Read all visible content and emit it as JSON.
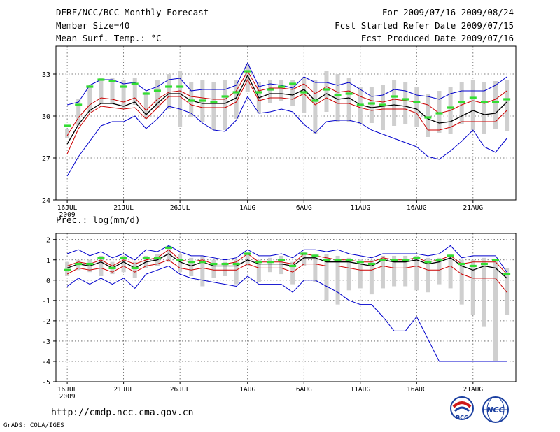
{
  "header": {
    "title": "DERF/NCC/BCC Monthly Forecast",
    "member_size": "Member Size=40",
    "variable": "Mean Surf. Temp.: °C",
    "period": "For 2009/07/16-2009/08/24",
    "started": "Fcst Started Refer Date 2009/07/15",
    "produced": "Fcst Produced Date 2009/07/16"
  },
  "footer": {
    "url": "http://cmdp.ncc.cma.gov.cn",
    "grads": "GrADS: COLA/IGES",
    "logo_left_text": "BCC",
    "logo_right_text": "NCC"
  },
  "colors": {
    "max_min": "#0000cc",
    "spread": "#cc0000",
    "mean": "#000000",
    "member_box": "#cfcfcf",
    "marker": "#33dd33"
  },
  "chart_data": [
    {
      "type": "line",
      "title": "Mean Surf. Temp.: °C",
      "x_ticks": [
        {
          "day": 0,
          "label": "16JUL",
          "sub": "2009"
        },
        {
          "day": 5,
          "label": "21JUL"
        },
        {
          "day": 10,
          "label": "26JUL"
        },
        {
          "day": 16,
          "label": "1AUG"
        },
        {
          "day": 21,
          "label": "6AUG"
        },
        {
          "day": 26,
          "label": "11AUG"
        },
        {
          "day": 31,
          "label": "16AUG"
        },
        {
          "day": 36,
          "label": "21AUG"
        }
      ],
      "xlim": [
        -1,
        39.8
      ],
      "ylim": [
        24,
        35
      ],
      "yticks": [
        24,
        27,
        30,
        33
      ],
      "grid": true,
      "series": [
        {
          "name": "max",
          "role": "max",
          "values": [
            30.8,
            31.0,
            32.2,
            32.6,
            32.6,
            32.3,
            32.4,
            31.8,
            32.1,
            32.6,
            32.7,
            31.8,
            31.9,
            31.9,
            31.9,
            32.2,
            33.8,
            32.1,
            32.3,
            32.2,
            32.0,
            32.8,
            32.4,
            32.4,
            32.2,
            32.4,
            31.9,
            31.4,
            31.5,
            31.9,
            31.8,
            31.5,
            31.4,
            31.2,
            31.6,
            31.8,
            31.8,
            31.8,
            32.2,
            32.8
          ]
        },
        {
          "name": "max_member",
          "role": "upper",
          "values": [
            28.6,
            29.9,
            30.8,
            31.3,
            31.2,
            31.0,
            31.3,
            30.4,
            31.2,
            31.7,
            31.8,
            31.4,
            31.3,
            31.2,
            31.2,
            31.8,
            33.2,
            31.8,
            32.0,
            32.0,
            31.9,
            32.3,
            31.6,
            32.1,
            31.7,
            31.8,
            31.4,
            31.1,
            31.0,
            31.2,
            31.1,
            31.0,
            30.8,
            30.2,
            30.4,
            30.8,
            31.1,
            30.9,
            31.2,
            31.8
          ]
        },
        {
          "name": "mean",
          "role": "mean",
          "values": [
            28.0,
            29.4,
            30.4,
            30.9,
            30.9,
            30.7,
            31.0,
            30.1,
            30.9,
            31.6,
            31.6,
            31.1,
            30.9,
            30.9,
            30.9,
            31.3,
            32.9,
            31.3,
            31.6,
            31.6,
            31.5,
            31.9,
            31.1,
            31.6,
            31.2,
            31.3,
            30.8,
            30.6,
            30.7,
            30.8,
            30.7,
            30.5,
            29.8,
            29.5,
            29.6,
            30.0,
            30.4,
            30.1,
            30.2,
            31.0
          ]
        },
        {
          "name": "min_member",
          "role": "lower",
          "values": [
            27.3,
            29.1,
            30.2,
            30.7,
            30.6,
            30.5,
            30.6,
            29.8,
            30.6,
            31.4,
            31.4,
            30.8,
            30.6,
            30.6,
            30.6,
            31.0,
            32.6,
            31.1,
            31.3,
            31.3,
            31.2,
            31.6,
            30.8,
            31.3,
            30.9,
            30.9,
            30.6,
            30.4,
            30.5,
            30.5,
            30.5,
            30.2,
            29.0,
            29.0,
            29.2,
            29.6,
            29.6,
            29.6,
            29.6,
            30.4
          ]
        },
        {
          "name": "min",
          "role": "min",
          "values": [
            25.7,
            27.1,
            28.2,
            29.3,
            29.6,
            29.6,
            30.0,
            29.1,
            29.8,
            30.7,
            30.5,
            30.2,
            29.5,
            29.0,
            28.9,
            29.7,
            31.4,
            30.2,
            30.3,
            30.5,
            30.3,
            29.4,
            28.8,
            29.6,
            29.7,
            29.7,
            29.5,
            29.0,
            28.7,
            28.4,
            28.1,
            27.8,
            27.1,
            26.9,
            27.5,
            28.2,
            29.0,
            27.8,
            27.4,
            28.4
          ]
        },
        {
          "name": "member_box_top",
          "role": "box_top",
          "values": [
            29.1,
            31.2,
            32.2,
            32.7,
            32.7,
            32.6,
            32.7,
            31.7,
            32.6,
            33.0,
            33.2,
            32.4,
            32.6,
            32.4,
            32.6,
            32.6,
            33.7,
            32.4,
            32.6,
            32.6,
            32.6,
            32.8,
            32.6,
            33.2,
            33.0,
            32.7,
            32.1,
            32.1,
            32.2,
            32.6,
            32.4,
            32.1,
            31.6,
            31.8,
            32.1,
            32.4,
            32.6,
            32.4,
            32.5,
            32.6
          ]
        },
        {
          "name": "member_box_bottom",
          "role": "box_bottom",
          "values": [
            28.4,
            29.3,
            30.3,
            30.9,
            30.9,
            30.5,
            30.8,
            29.8,
            30.6,
            30.5,
            29.2,
            29.9,
            29.6,
            29.0,
            29.0,
            29.8,
            31.7,
            30.2,
            30.9,
            31.1,
            30.7,
            30.2,
            28.7,
            30.3,
            29.6,
            29.6,
            29.4,
            29.5,
            29.0,
            29.3,
            29.4,
            29.2,
            28.5,
            28.8,
            28.7,
            29.4,
            29.0,
            28.7,
            29.1,
            28.9
          ]
        },
        {
          "name": "observed_marker",
          "role": "marker",
          "values": [
            29.3,
            30.8,
            32.1,
            32.6,
            32.5,
            32.1,
            32.3,
            31.6,
            31.8,
            32.1,
            32.1,
            31.1,
            31.1,
            31.0,
            31.4,
            31.7,
            33.2,
            31.7,
            31.9,
            32.1,
            32.3,
            31.7,
            31.1,
            31.9,
            31.5,
            31.6,
            30.8,
            30.9,
            30.8,
            31.4,
            31.2,
            31.0,
            29.9,
            30.2,
            30.6,
            31.0,
            31.3,
            31.0,
            31.0,
            31.2
          ]
        }
      ]
    },
    {
      "type": "line",
      "title": "Prec.: log(mm/d)",
      "x_ticks": [
        {
          "day": 0,
          "label": "16JUL",
          "sub": "2009"
        },
        {
          "day": 5,
          "label": "21JUL"
        },
        {
          "day": 10,
          "label": "26JUL"
        },
        {
          "day": 16,
          "label": "1AUG"
        },
        {
          "day": 21,
          "label": "6AUG"
        },
        {
          "day": 26,
          "label": "11AUG"
        },
        {
          "day": 31,
          "label": "16AUG"
        },
        {
          "day": 36,
          "label": "21AUG"
        }
      ],
      "xlim": [
        -1,
        39.8
      ],
      "ylim": [
        -5,
        2.3
      ],
      "yticks": [
        -5,
        -4,
        -3,
        -2,
        -1,
        0,
        1,
        2
      ],
      "grid": true,
      "series": [
        {
          "name": "max",
          "role": "max",
          "values": [
            1.3,
            1.5,
            1.2,
            1.4,
            1.1,
            1.3,
            1.0,
            1.5,
            1.4,
            1.7,
            1.4,
            1.2,
            1.2,
            1.1,
            1.0,
            1.1,
            1.5,
            1.2,
            1.2,
            1.3,
            1.1,
            1.5,
            1.5,
            1.4,
            1.5,
            1.3,
            1.2,
            1.1,
            1.3,
            1.3,
            1.3,
            1.3,
            1.2,
            1.3,
            1.7,
            1.1,
            1.2,
            1.2,
            1.2,
            0.4
          ]
        },
        {
          "name": "max_member",
          "role": "upper",
          "values": [
            0.7,
            0.9,
            0.8,
            1.0,
            0.7,
            1.0,
            0.8,
            1.0,
            1.1,
            1.5,
            1.0,
            0.9,
            1.0,
            0.8,
            0.8,
            0.9,
            1.3,
            0.9,
            0.9,
            0.9,
            0.8,
            1.3,
            1.2,
            1.1,
            1.0,
            1.0,
            0.9,
            0.9,
            1.1,
            1.0,
            1.0,
            1.1,
            0.9,
            1.0,
            1.2,
            0.8,
            0.9,
            0.9,
            0.9,
            0.3
          ]
        },
        {
          "name": "mean",
          "role": "mean",
          "values": [
            0.6,
            0.8,
            0.7,
            0.9,
            0.6,
            0.9,
            0.6,
            0.9,
            1.0,
            1.3,
            0.9,
            0.7,
            0.9,
            0.7,
            0.7,
            0.7,
            1.0,
            0.8,
            0.8,
            0.8,
            0.7,
            1.1,
            1.1,
            0.9,
            0.9,
            0.9,
            0.8,
            0.7,
            1.0,
            0.9,
            0.9,
            1.0,
            0.8,
            0.9,
            1.1,
            0.7,
            0.5,
            0.7,
            0.6,
            0.1
          ]
        },
        {
          "name": "min_member",
          "role": "lower",
          "values": [
            0.3,
            0.6,
            0.5,
            0.6,
            0.4,
            0.7,
            0.4,
            0.7,
            0.8,
            1.0,
            0.6,
            0.5,
            0.6,
            0.5,
            0.5,
            0.5,
            0.8,
            0.6,
            0.6,
            0.6,
            0.4,
            0.8,
            0.8,
            0.7,
            0.7,
            0.6,
            0.5,
            0.5,
            0.7,
            0.6,
            0.6,
            0.7,
            0.5,
            0.5,
            0.7,
            0.3,
            0.1,
            0.1,
            0.1,
            -0.6
          ]
        },
        {
          "name": "min",
          "role": "min",
          "values": [
            -0.3,
            0.1,
            -0.2,
            0.1,
            -0.2,
            0.1,
            -0.4,
            0.3,
            0.5,
            0.7,
            0.3,
            0.1,
            0.0,
            -0.1,
            -0.2,
            -0.3,
            0.2,
            -0.2,
            -0.2,
            -0.2,
            -0.6,
            0.0,
            0.0,
            -0.3,
            -0.6,
            -1.0,
            -1.2,
            -1.2,
            -1.8,
            -2.5,
            -2.5,
            -1.8,
            -2.9,
            -4.0,
            -4.0,
            -4.0,
            -4.0,
            -4.0,
            -4.0,
            -4.0
          ]
        },
        {
          "name": "member_box_top",
          "role": "box_top",
          "values": [
            0.9,
            1.0,
            1.0,
            1.2,
            0.9,
            1.2,
            0.9,
            1.2,
            1.3,
            1.7,
            1.3,
            1.1,
            1.2,
            1.0,
            0.9,
            1.0,
            1.4,
            1.0,
            1.1,
            1.2,
            0.9,
            1.4,
            1.3,
            1.3,
            1.2,
            1.1,
            1.0,
            1.0,
            1.2,
            1.2,
            1.2,
            1.2,
            1.1,
            1.1,
            1.3,
            1.0,
            1.0,
            1.1,
            1.0,
            0.6
          ]
        },
        {
          "name": "member_box_bottom",
          "role": "box_bottom",
          "values": [
            0.2,
            0.5,
            0.4,
            0.2,
            0.3,
            0.4,
            0.1,
            0.6,
            0.7,
            0.9,
            0.4,
            0.2,
            -0.3,
            0.1,
            0.2,
            -0.2,
            0.7,
            -0.1,
            0.4,
            0.3,
            -0.2,
            0.7,
            -0.1,
            -1.0,
            -1.2,
            -0.5,
            -0.4,
            -0.7,
            -0.4,
            -0.3,
            -0.3,
            -0.5,
            -0.6,
            -0.2,
            -0.4,
            -1.2,
            -1.7,
            -2.3,
            -4.0,
            -1.7
          ]
        },
        {
          "name": "observed_marker",
          "role": "marker",
          "values": [
            0.5,
            0.8,
            0.8,
            1.1,
            0.6,
            1.1,
            0.6,
            1.1,
            1.1,
            1.6,
            1.0,
            0.9,
            0.9,
            0.8,
            0.8,
            0.8,
            1.3,
            0.9,
            0.9,
            1.0,
            0.7,
            1.3,
            1.2,
            1.0,
            1.0,
            1.0,
            0.9,
            0.8,
            1.0,
            1.0,
            1.0,
            1.1,
            0.9,
            1.0,
            1.2,
            0.8,
            0.7,
            0.8,
            1.0,
            0.3
          ]
        }
      ]
    }
  ]
}
